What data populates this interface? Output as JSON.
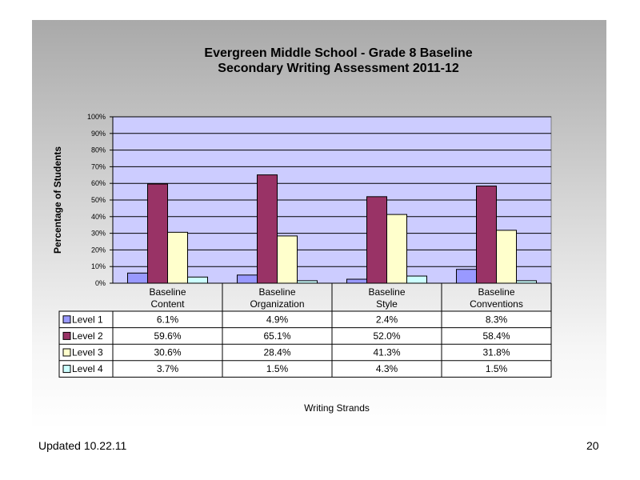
{
  "chart_data": {
    "type": "bar",
    "title": [
      "Evergreen Middle School - Grade 8 Baseline",
      "Secondary Writing Assessment 2011-12"
    ],
    "xlabel": "Writing Strands",
    "ylabel": "Percentage of Students",
    "ylim": [
      0,
      100
    ],
    "yticks": [
      "0%",
      "10%",
      "20%",
      "30%",
      "40%",
      "50%",
      "60%",
      "70%",
      "80%",
      "90%",
      "100%"
    ],
    "grid": true,
    "legend": "data-table",
    "categories": [
      [
        "Baseline",
        "Content"
      ],
      [
        "Baseline",
        "Organization"
      ],
      [
        "Baseline",
        "Style"
      ],
      [
        "Baseline",
        "Conventions"
      ]
    ],
    "series": [
      {
        "name": "Level 1",
        "color": "#9999ff",
        "values": [
          6.1,
          4.9,
          2.4,
          8.3
        ],
        "labels": [
          "6.1%",
          "4.9%",
          "2.4%",
          "8.3%"
        ]
      },
      {
        "name": "Level 2",
        "color": "#993366",
        "values": [
          59.6,
          65.1,
          52.0,
          58.4
        ],
        "labels": [
          "59.6%",
          "65.1%",
          "52.0%",
          "58.4%"
        ]
      },
      {
        "name": "Level 3",
        "color": "#ffffcc",
        "values": [
          30.6,
          28.4,
          41.3,
          31.8
        ],
        "labels": [
          "30.6%",
          "28.4%",
          "41.3%",
          "31.8%"
        ]
      },
      {
        "name": "Level 4",
        "color": "#ccffff",
        "values": [
          3.7,
          1.5,
          4.3,
          1.5
        ],
        "labels": [
          "3.7%",
          "1.5%",
          "4.3%",
          "1.5%"
        ]
      }
    ],
    "plot_background": "#ccccff"
  },
  "footer": {
    "updated": "Updated  10.22.11",
    "page_number": "20"
  }
}
